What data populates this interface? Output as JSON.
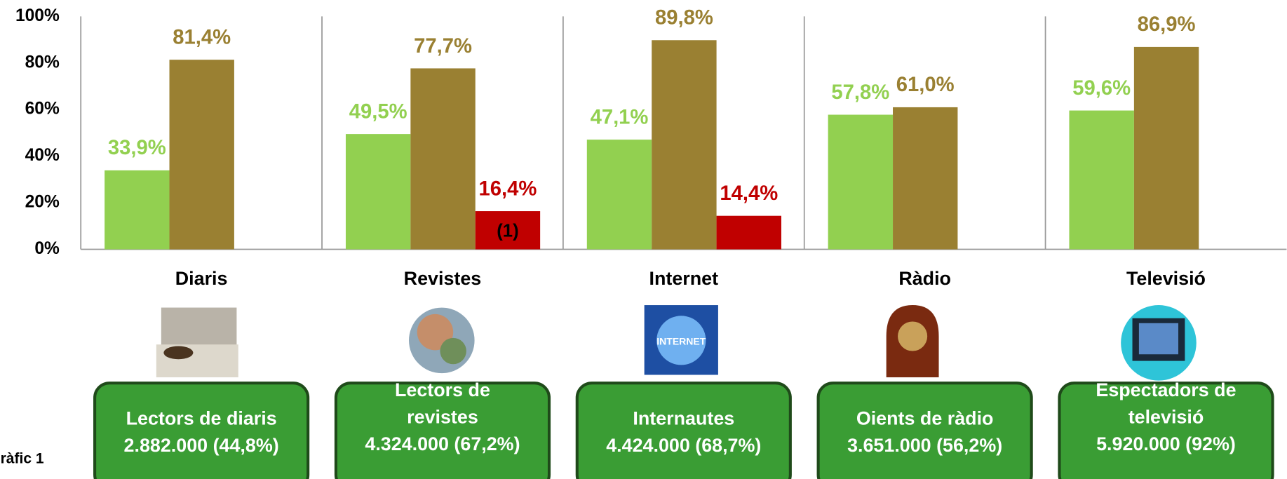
{
  "chart_data": {
    "type": "bar",
    "categories": [
      "Diaris",
      "Revistes",
      "Internet",
      "Ràdio",
      "Televisió"
    ],
    "series": [
      {
        "color": "#92d050",
        "values": [
          33.9,
          49.5,
          47.1,
          57.8,
          59.6
        ],
        "value_labels": [
          "33,9%",
          "49,5%",
          "47,1%",
          "57,8%",
          "59,6%"
        ]
      },
      {
        "color": "#9a8032",
        "values": [
          81.4,
          77.7,
          89.8,
          61.0,
          86.9
        ],
        "value_labels": [
          "81,4%",
          "77,7%",
          "89,8%",
          "61,0%",
          "86,9%"
        ]
      },
      {
        "color": "#c00000",
        "values": [
          null,
          16.4,
          14.4,
          null,
          null
        ],
        "value_labels": [
          null,
          "16,4%",
          "14,4%",
          null,
          null
        ]
      }
    ],
    "annotation": "(1)",
    "ylim": [
      0,
      100
    ],
    "yticks": [
      {
        "value": 0,
        "label": "0%"
      },
      {
        "value": 20,
        "label": "20%"
      },
      {
        "value": 40,
        "label": "40%"
      },
      {
        "value": 60,
        "label": "60%"
      },
      {
        "value": 80,
        "label": "80%"
      },
      {
        "value": 100,
        "label": "100%"
      }
    ]
  },
  "boxes": [
    [
      "Lectors de diaris",
      "2.882.000 (44,8%)"
    ],
    [
      "Lectors de",
      "revistes",
      "4.324.000 (67,2%)"
    ],
    [
      "Internautes",
      "4.424.000 (68,7%)"
    ],
    [
      "Oients de ràdio",
      "3.651.000 (56,2%)"
    ],
    [
      "Espectadors de",
      "televisió",
      "5.920.000 (92%)"
    ]
  ],
  "footer": "ràfic 1"
}
